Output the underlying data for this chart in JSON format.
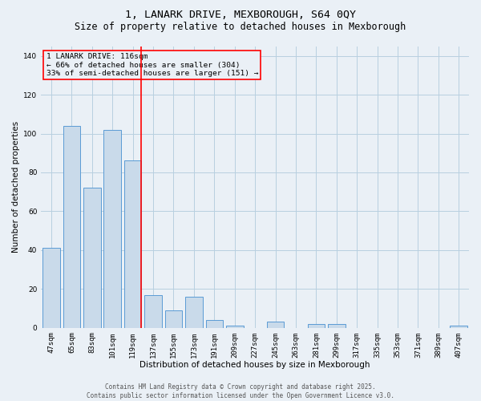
{
  "title_line1": "1, LANARK DRIVE, MEXBOROUGH, S64 0QY",
  "title_line2": "Size of property relative to detached houses in Mexborough",
  "xlabel": "Distribution of detached houses by size in Mexborough",
  "ylabel": "Number of detached properties",
  "categories": [
    "47sqm",
    "65sqm",
    "83sqm",
    "101sqm",
    "119sqm",
    "137sqm",
    "155sqm",
    "173sqm",
    "191sqm",
    "209sqm",
    "227sqm",
    "245sqm",
    "263sqm",
    "281sqm",
    "299sqm",
    "317sqm",
    "335sqm",
    "353sqm",
    "371sqm",
    "389sqm",
    "407sqm"
  ],
  "values": [
    41,
    104,
    72,
    102,
    86,
    17,
    9,
    16,
    4,
    1,
    0,
    3,
    0,
    2,
    2,
    0,
    0,
    0,
    0,
    0,
    1
  ],
  "bar_color": "#c9daea",
  "bar_edge_color": "#5b9bd5",
  "red_line_index": 4,
  "annotation_text": "1 LANARK DRIVE: 116sqm\n← 66% of detached houses are smaller (304)\n33% of semi-detached houses are larger (151) →",
  "ylim": [
    0,
    145
  ],
  "yticks": [
    0,
    20,
    40,
    60,
    80,
    100,
    120,
    140
  ],
  "grid_color": "#b8cfe0",
  "background_color": "#eaf0f6",
  "footer_text": "Contains HM Land Registry data © Crown copyright and database right 2025.\nContains public sector information licensed under the Open Government Licence v3.0.",
  "title_fontsize": 9.5,
  "subtitle_fontsize": 8.5,
  "axis_label_fontsize": 7.5,
  "tick_fontsize": 6.5,
  "annotation_fontsize": 6.8,
  "footer_fontsize": 5.5
}
